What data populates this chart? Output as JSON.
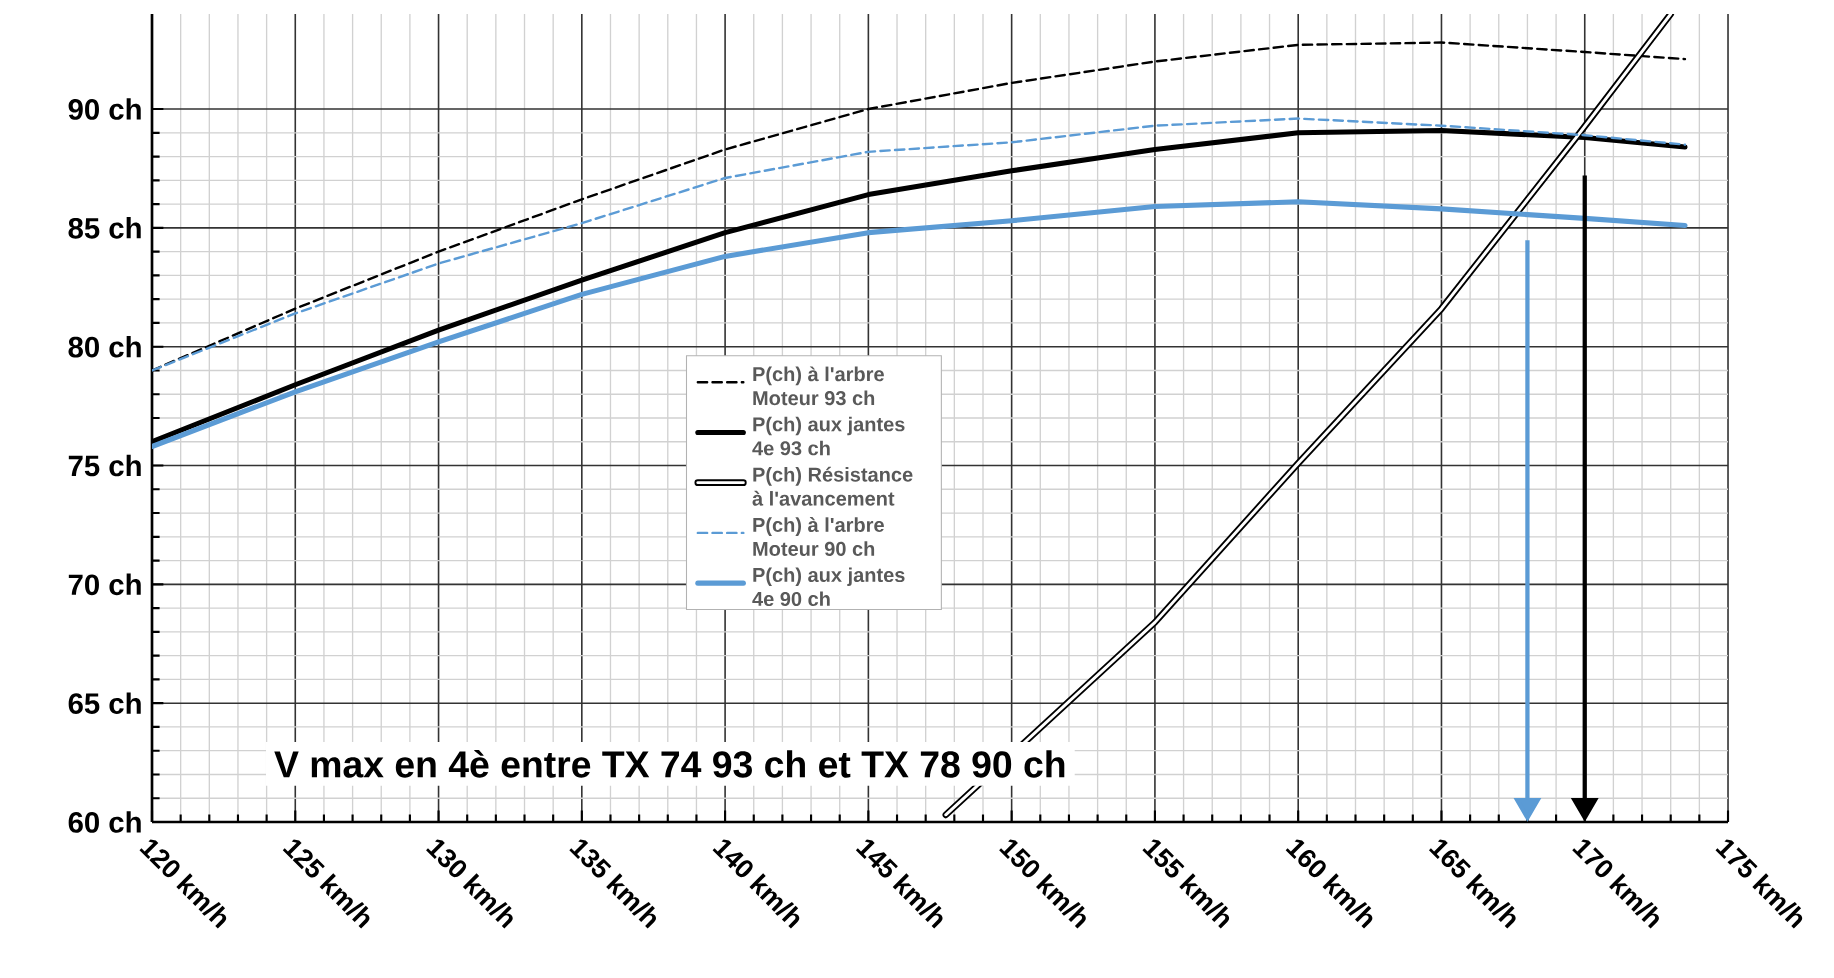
{
  "chart_data": {
    "type": "line",
    "xlim": [
      120,
      175
    ],
    "ylim": [
      60,
      94
    ],
    "xticks": [
      {
        "value": 120,
        "label": "120 km/h"
      },
      {
        "value": 125,
        "label": "125 km/h"
      },
      {
        "value": 130,
        "label": "130 km/h"
      },
      {
        "value": 135,
        "label": "135 km/h"
      },
      {
        "value": 140,
        "label": "140 km/h"
      },
      {
        "value": 145,
        "label": "145 km/h"
      },
      {
        "value": 150,
        "label": "150 km/h"
      },
      {
        "value": 155,
        "label": "155 km/h"
      },
      {
        "value": 160,
        "label": "160 km/h"
      },
      {
        "value": 165,
        "label": "165 km/h"
      },
      {
        "value": 170,
        "label": "170 km/h"
      },
      {
        "value": 175,
        "label": "175 km/h"
      }
    ],
    "yticks": [
      {
        "value": 60,
        "label": "60 ch"
      },
      {
        "value": 65,
        "label": "65 ch"
      },
      {
        "value": 70,
        "label": "70 ch"
      },
      {
        "value": 75,
        "label": "75 ch"
      },
      {
        "value": 80,
        "label": "80 ch"
      },
      {
        "value": 85,
        "label": "85 ch"
      },
      {
        "value": 90,
        "label": "90 ch"
      }
    ],
    "grid": true,
    "legend": "center",
    "marker": "none",
    "series": [
      {
        "name": "P(ch) à l'arbre Moteur 93 ch",
        "color": "#000000",
        "line_style": "dashed",
        "x": [
          120,
          125,
          130,
          135,
          140,
          145,
          150,
          155,
          160,
          165,
          170,
          173.5
        ],
        "values": [
          79,
          81.6,
          84,
          86.2,
          88.3,
          90,
          91.1,
          92,
          92.7,
          92.8,
          92.4,
          92.1
        ]
      },
      {
        "name": "P(ch) aux jantes 4e 93 ch",
        "color": "#000000",
        "line_style": "solid",
        "x": [
          120,
          125,
          130,
          135,
          140,
          145,
          150,
          155,
          160,
          165,
          170,
          173.5
        ],
        "values": [
          76,
          78.4,
          80.7,
          82.8,
          84.8,
          86.4,
          87.4,
          88.3,
          89,
          89.1,
          88.8,
          88.4
        ]
      },
      {
        "name": "P(ch) Résistance à l'avancement",
        "color": "#000000",
        "x": [
          147.7,
          155,
          160,
          165,
          169.7,
          173
        ],
        "values": [
          60.3,
          68.4,
          75.1,
          81.6,
          88.8,
          94
        ]
      },
      {
        "name": "P(ch) à l'arbre Moteur 90 ch",
        "color": "#5b9bd5",
        "line_style": "dashed",
        "x": [
          120,
          125,
          130,
          135,
          140,
          145,
          150,
          155,
          160,
          165,
          170,
          173.5
        ],
        "values": [
          79,
          81.4,
          83.5,
          85.2,
          87.1,
          88.2,
          88.6,
          89.3,
          89.6,
          89.3,
          88.9,
          88.5
        ]
      },
      {
        "name": "P(ch) aux jantes 4e 90 ch",
        "color": "#5b9bd5",
        "line_style": "solid",
        "x": [
          120,
          125,
          130,
          135,
          140,
          145,
          150,
          155,
          160,
          165,
          170,
          173.5
        ],
        "values": [
          75.8,
          78.1,
          80.2,
          82.2,
          83.8,
          84.8,
          85.3,
          85.9,
          86.1,
          85.8,
          85.4,
          85.1
        ]
      }
    ],
    "ref_lines": [
      {
        "axis": "x",
        "value": 168,
        "color": "#5b9bd5"
      },
      {
        "axis": "x",
        "value": 170,
        "color": "#000000"
      }
    ],
    "annotations": [
      "V max en 4è  entre TX 74 93 ch  et TX 78  90 ch"
    ]
  }
}
